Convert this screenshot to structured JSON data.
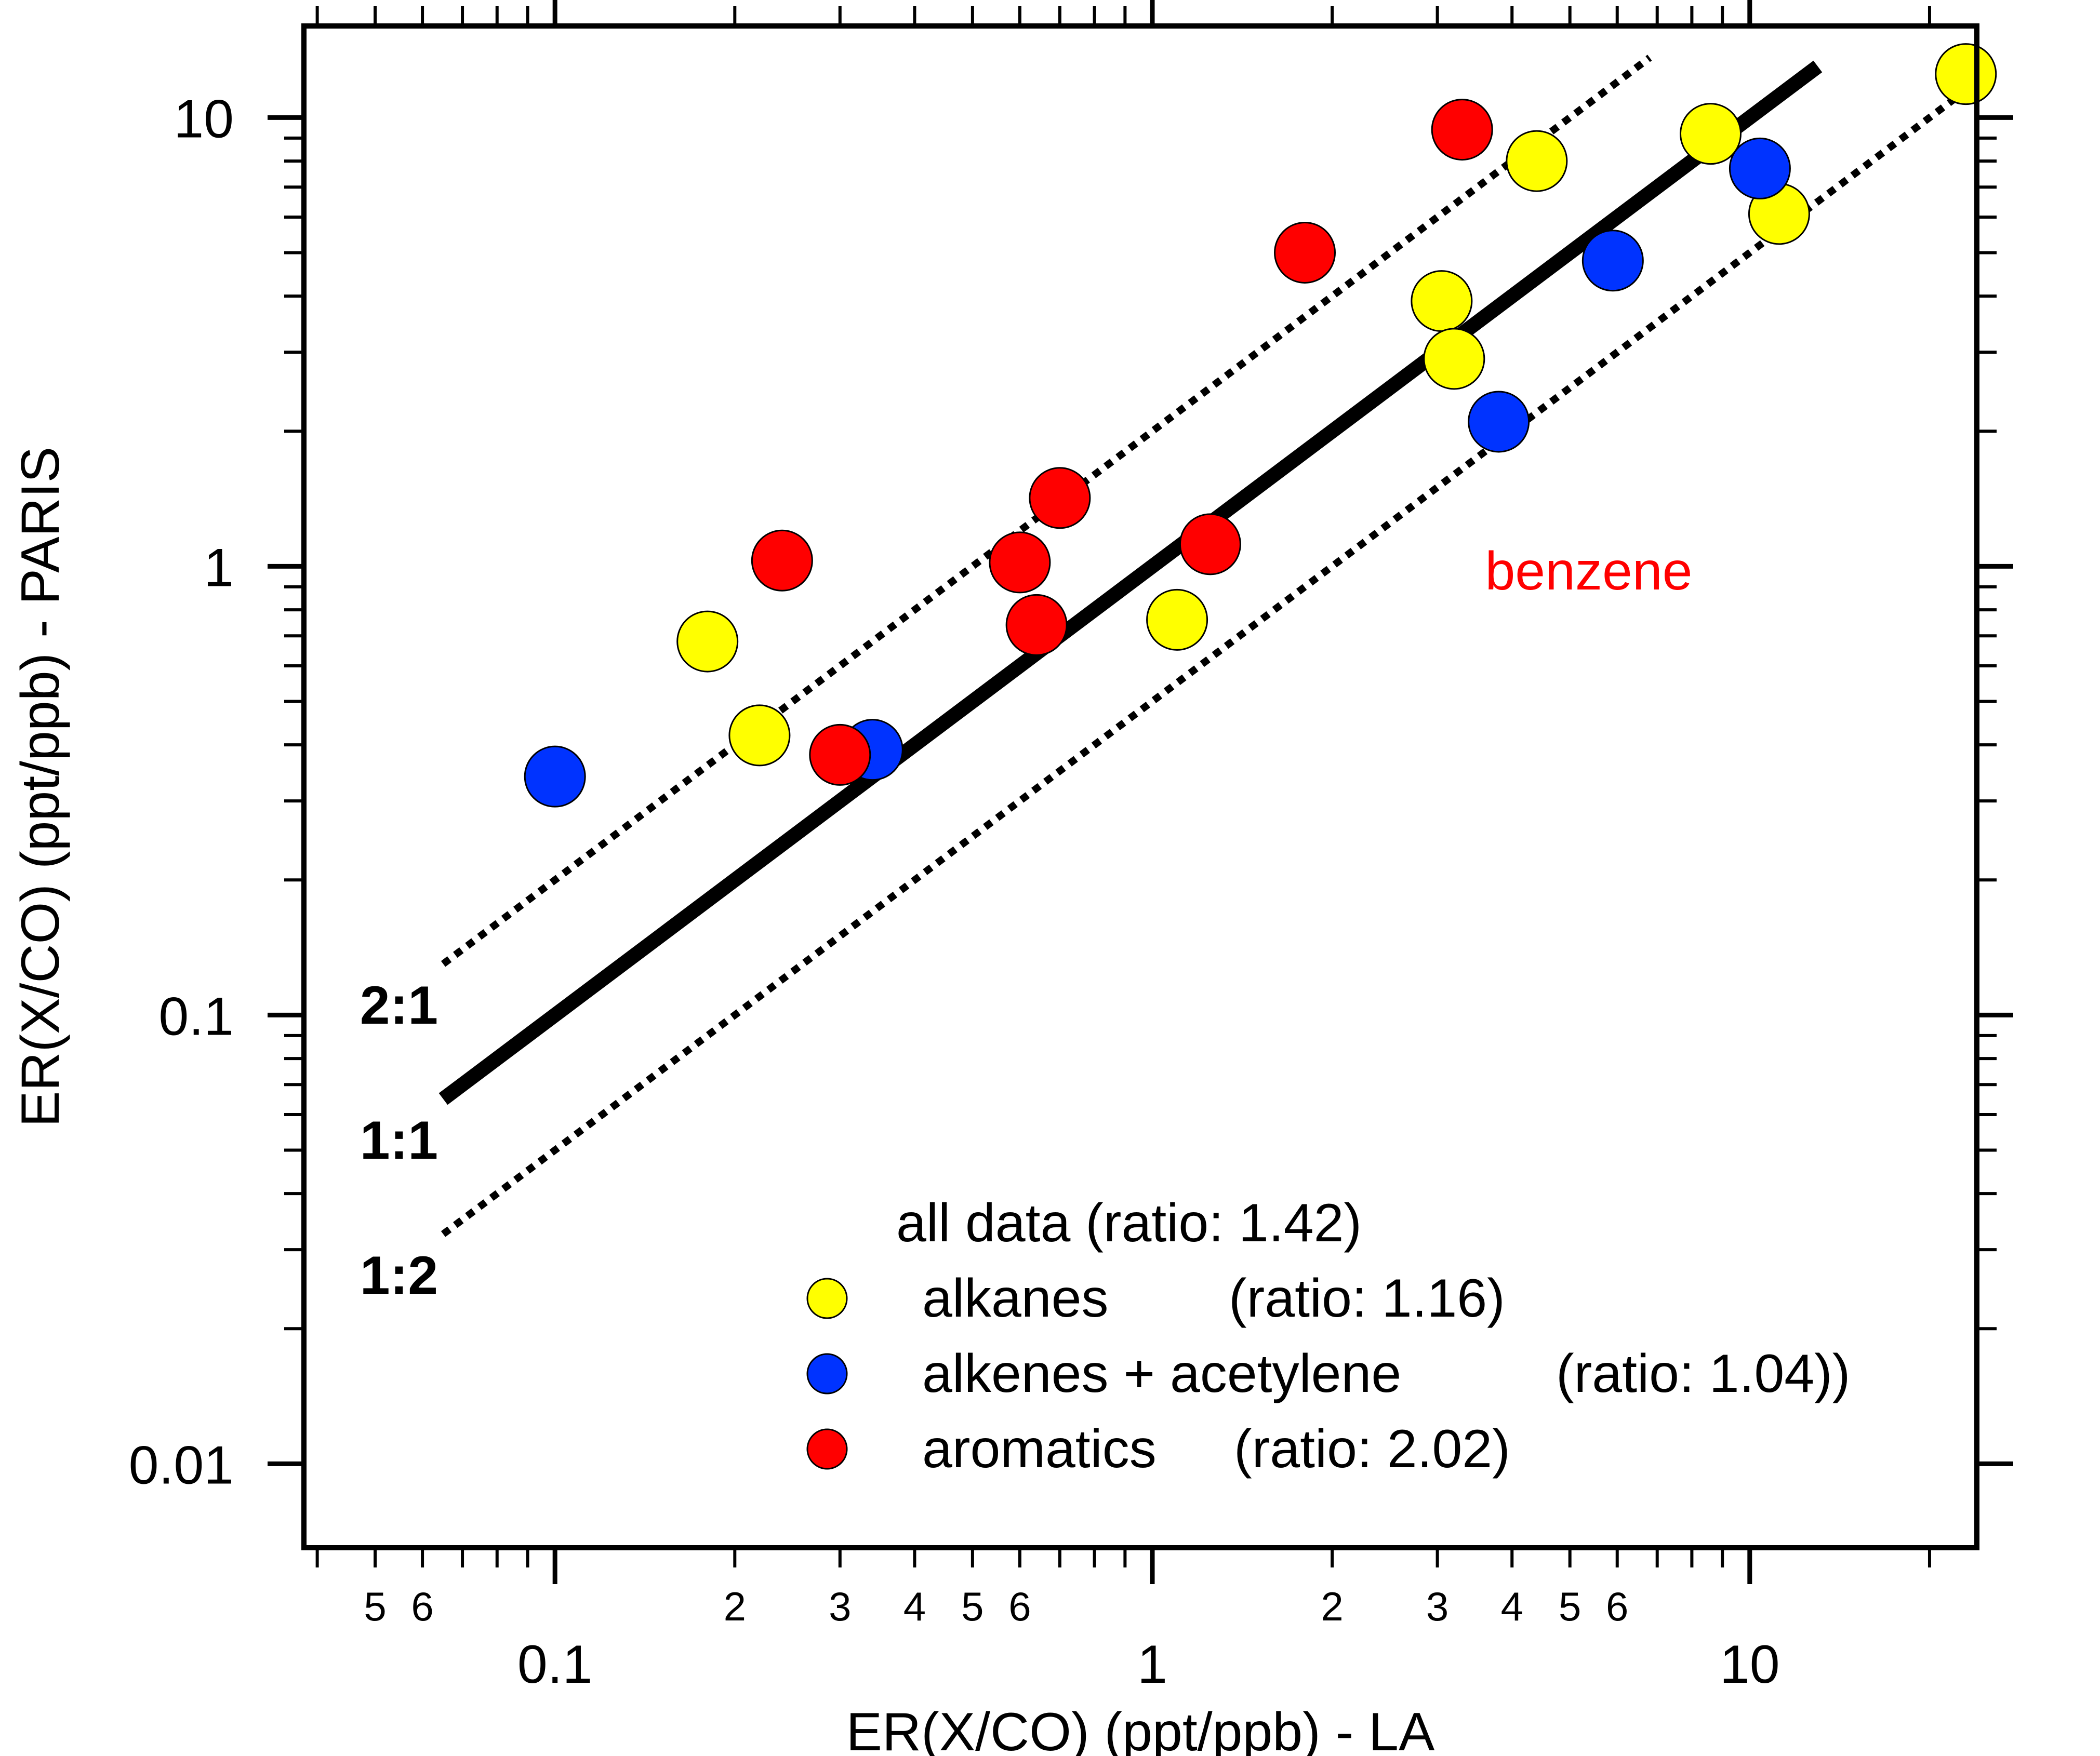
{
  "chart_data": {
    "type": "scatter",
    "xscale": "log",
    "yscale": "log",
    "xlabel": "ER(X/CO) (ppt/ppb) - LA",
    "ylabel": "ER(X/CO) (ppt/ppb) - PARIS",
    "xlim": [
      0.038,
      24
    ],
    "ylim": [
      0.0065,
      16
    ],
    "x_major_ticks": [
      {
        "v": 0.1,
        "label": "0.1"
      },
      {
        "v": 1,
        "label": "1"
      },
      {
        "v": 10,
        "label": "10"
      }
    ],
    "x_minor_labels": [
      {
        "v": 0.05,
        "label": "5"
      },
      {
        "v": 0.06,
        "label": "6"
      },
      {
        "v": 0.2,
        "label": "2"
      },
      {
        "v": 0.3,
        "label": "3"
      },
      {
        "v": 0.4,
        "label": "4"
      },
      {
        "v": 0.5,
        "label": "5"
      },
      {
        "v": 0.6,
        "label": "6"
      },
      {
        "v": 2,
        "label": "2"
      },
      {
        "v": 3,
        "label": "3"
      },
      {
        "v": 4,
        "label": "4"
      },
      {
        "v": 5,
        "label": "5"
      },
      {
        "v": 6,
        "label": "6"
      }
    ],
    "y_major_ticks": [
      {
        "v": 0.01,
        "label": "0.01"
      },
      {
        "v": 0.1,
        "label": "0.1"
      },
      {
        "v": 1,
        "label": "1"
      },
      {
        "v": 10,
        "label": "10"
      }
    ],
    "grid": false,
    "legend_position": "bottom-right",
    "legend_title": "all data (ratio: 1.42)",
    "reference_lines": [
      {
        "label": "2:1",
        "ratio": 2,
        "x_range": [
          0.065,
          6.8
        ],
        "style": "dotted"
      },
      {
        "label": "1:1",
        "ratio": 1,
        "x_range": [
          0.065,
          13
        ],
        "style": "solid"
      },
      {
        "label": "1:2",
        "ratio": 0.5,
        "x_range": [
          0.065,
          25
        ],
        "style": "dotted"
      }
    ],
    "annotations": [
      {
        "text": "benzene",
        "x": 5.3,
        "y": 1.0,
        "color": "#ff0000"
      }
    ],
    "series": [
      {
        "name": "alkanes",
        "legend_label": "alkanes",
        "ratio_label": "(ratio: 1.16)",
        "color": "#ffff00",
        "points": [
          [
            0.18,
            0.68
          ],
          [
            0.22,
            0.42
          ],
          [
            1.1,
            0.76
          ],
          [
            3.05,
            3.9
          ],
          [
            3.2,
            2.9
          ],
          [
            4.4,
            8.0
          ],
          [
            8.6,
            9.2
          ],
          [
            11.2,
            6.1
          ],
          [
            23,
            12.5
          ]
        ]
      },
      {
        "name": "alkenes + acetylene",
        "legend_label": "alkenes + acetylene",
        "ratio_label": "(ratio: 1.04))",
        "color": "#0033ff",
        "points": [
          [
            0.1,
            0.34
          ],
          [
            0.34,
            0.39
          ],
          [
            3.8,
            2.1
          ],
          [
            5.9,
            4.8
          ],
          [
            10.4,
            7.7
          ]
        ]
      },
      {
        "name": "aromatics",
        "legend_label": "aromatics",
        "ratio_label": "(ratio: 2.02)",
        "color": "#ff0000",
        "points": [
          [
            0.24,
            1.03
          ],
          [
            0.3,
            0.38
          ],
          [
            0.6,
            1.02
          ],
          [
            0.64,
            0.74
          ],
          [
            0.7,
            1.42
          ],
          [
            1.25,
            1.12
          ],
          [
            1.8,
            5.0
          ],
          [
            3.3,
            9.4
          ]
        ]
      }
    ]
  }
}
